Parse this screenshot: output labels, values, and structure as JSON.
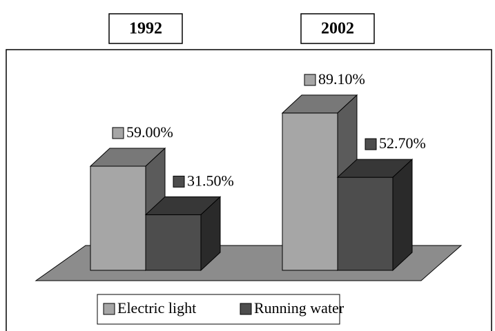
{
  "chart_data": {
    "type": "bar3d",
    "categories": [
      "1992",
      "2002"
    ],
    "series": [
      {
        "name": "Electric light",
        "color": "#a6a6a6",
        "values": [
          59,
          89.1
        ],
        "value_labels": [
          "59.00%",
          "89.10%"
        ]
      },
      {
        "name": "Running water",
        "color": "#4d4d4d",
        "values": [
          31.5,
          52.7
        ],
        "value_labels": [
          "31.50%",
          "52.70%"
        ]
      }
    ],
    "legend": "bottom"
  }
}
